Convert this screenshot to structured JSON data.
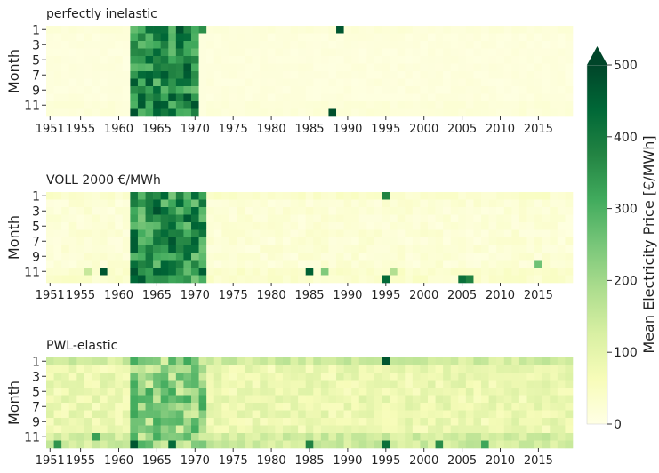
{
  "chart_data": {
    "type": "heatmap",
    "colorbar": {
      "label": "Mean Electricity Price [€/MWh]",
      "ticks": [
        0,
        100,
        200,
        300,
        400,
        500
      ],
      "range": [
        0,
        500
      ],
      "extend": "max",
      "colormap": [
        "#ffffe5",
        "#f7fcb9",
        "#d9f0a3",
        "#addd8e",
        "#78c679",
        "#41ab5d",
        "#238443",
        "#006837",
        "#004529"
      ]
    },
    "shared": {
      "ylabel": "Month",
      "years": [
        1951,
        2019
      ],
      "y_tick_labels": [
        "1",
        "3",
        "5",
        "7",
        "9",
        "11"
      ],
      "x_tick_labels": [
        "1951",
        "1955",
        "1960",
        "1965",
        "1970",
        "1975",
        "1980",
        "1985",
        "1990",
        "1995",
        "2000",
        "2005",
        "2010",
        "2015"
      ]
    },
    "panels": [
      {
        "title": "perfectly inelastic",
        "base": 12,
        "noise": 6,
        "scarcity_years": [
          1962,
          1971
        ],
        "scarcity_low": 260,
        "scarcity_high": 480,
        "spikes": [
          {
            "year": 1989,
            "month": 1,
            "value": 470
          },
          {
            "year": 1988,
            "month": 12,
            "value": 480
          }
        ]
      },
      {
        "title": "VOLL 2000 €/MWh",
        "base": 22,
        "noise": 14,
        "scarcity_years": [
          1962,
          1971
        ],
        "scarcity_low": 240,
        "scarcity_high": 480,
        "spikes": [
          {
            "year": 1958,
            "month": 11,
            "value": 470
          },
          {
            "year": 1985,
            "month": 11,
            "value": 450
          },
          {
            "year": 1995,
            "month": 1,
            "value": 380
          },
          {
            "year": 2005,
            "month": 12,
            "value": 420
          },
          {
            "year": 2006,
            "month": 12,
            "value": 380
          },
          {
            "year": 1995,
            "month": 12,
            "value": 430
          },
          {
            "year": 2015,
            "month": 10,
            "value": 260
          },
          {
            "year": 1956,
            "month": 11,
            "value": 150
          },
          {
            "year": 1987,
            "month": 11,
            "value": 240
          },
          {
            "year": 1996,
            "month": 11,
            "value": 180
          }
        ]
      },
      {
        "title": "PWL-elastic",
        "base": 85,
        "noise": 35,
        "scarcity_years": [
          1962,
          1971
        ],
        "scarcity_low": 120,
        "scarcity_high": 320,
        "spikes": [
          {
            "year": 1995,
            "month": 1,
            "value": 470
          },
          {
            "year": 1995,
            "month": 12,
            "value": 420
          },
          {
            "year": 1962,
            "month": 12,
            "value": 470
          },
          {
            "year": 1967,
            "month": 12,
            "value": 430
          },
          {
            "year": 1985,
            "month": 12,
            "value": 380
          },
          {
            "year": 2002,
            "month": 12,
            "value": 360
          },
          {
            "year": 1957,
            "month": 11,
            "value": 330
          },
          {
            "year": 1952,
            "month": 12,
            "value": 350
          },
          {
            "year": 2008,
            "month": 12,
            "value": 320
          }
        ]
      }
    ]
  }
}
